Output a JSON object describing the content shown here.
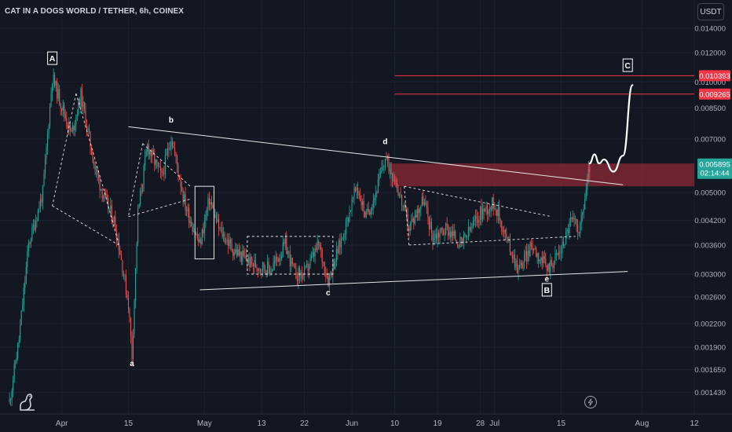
{
  "header": {
    "title": "CAT IN A DOGS WORLD / TETHER, 6h, COINEX",
    "currency": "USDT"
  },
  "icons": {
    "logo": "tradingview-dino-icon",
    "replay": "lightning-bolt-icon"
  },
  "colors": {
    "background": "#131722",
    "up": "#26a69a",
    "down": "#ef5350",
    "target_line": "#f23645",
    "resistance_zone": "#8c2a35",
    "current_price_tag": "#26a69a",
    "annotation": "#ffffff"
  },
  "chart_data": {
    "type": "candlestick",
    "title": "CAT IN A DOGS WORLD / TETHER, 6h, COINEX",
    "xlabel": "",
    "ylabel": "",
    "y_scale": "log",
    "ylim": [
      0.00125,
      0.0167
    ],
    "xlim": [
      "2024-03-19",
      "2024-08-12"
    ],
    "x_ticks": [
      {
        "date": "2024-04-01",
        "label": "Apr"
      },
      {
        "date": "2024-04-15",
        "label": "15"
      },
      {
        "date": "2024-05-01",
        "label": "May"
      },
      {
        "date": "2024-05-13",
        "label": "13"
      },
      {
        "date": "2024-05-22",
        "label": "22"
      },
      {
        "date": "2024-06-01",
        "label": "Jun"
      },
      {
        "date": "2024-06-10",
        "label": "10"
      },
      {
        "date": "2024-06-19",
        "label": "19"
      },
      {
        "date": "2024-06-28",
        "label": "28"
      },
      {
        "date": "2024-07-01",
        "label": "Jul"
      },
      {
        "date": "2024-07-15",
        "label": "15"
      },
      {
        "date": "2024-08-01",
        "label": "Aug"
      },
      {
        "date": "2024-08-12",
        "label": "12"
      }
    ],
    "y_ticks": [
      "0.014000",
      "0.012000",
      "0.010000",
      "0.008500",
      "0.007000",
      "0.005000",
      "0.004200",
      "0.003600",
      "0.003000",
      "0.002600",
      "0.002200",
      "0.001900",
      "0.001650",
      "0.001430"
    ],
    "price_path": [
      {
        "date": "2024-03-21",
        "price": 0.00135
      },
      {
        "date": "2024-03-23",
        "price": 0.002
      },
      {
        "date": "2024-03-25",
        "price": 0.0036
      },
      {
        "date": "2024-03-28",
        "price": 0.005
      },
      {
        "date": "2024-03-30",
        "price": 0.0103
      },
      {
        "date": "2024-04-03",
        "price": 0.0072
      },
      {
        "date": "2024-04-05",
        "price": 0.0092
      },
      {
        "date": "2024-04-08",
        "price": 0.0058
      },
      {
        "date": "2024-04-10",
        "price": 0.0048
      },
      {
        "date": "2024-04-12",
        "price": 0.0042
      },
      {
        "date": "2024-04-13",
        "price": 0.0036
      },
      {
        "date": "2024-04-15",
        "price": 0.0025
      },
      {
        "date": "2024-04-15T18:00",
        "price": 0.0018
      },
      {
        "date": "2024-04-17",
        "price": 0.0044
      },
      {
        "date": "2024-04-19",
        "price": 0.0067
      },
      {
        "date": "2024-04-22",
        "price": 0.0055
      },
      {
        "date": "2024-04-24",
        "price": 0.0071
      },
      {
        "date": "2024-04-27",
        "price": 0.0046
      },
      {
        "date": "2024-04-30",
        "price": 0.0036
      },
      {
        "date": "2024-05-02",
        "price": 0.0048
      },
      {
        "date": "2024-05-04",
        "price": 0.004
      },
      {
        "date": "2024-05-07",
        "price": 0.0035
      },
      {
        "date": "2024-05-11",
        "price": 0.0032
      },
      {
        "date": "2024-05-15",
        "price": 0.0031
      },
      {
        "date": "2024-05-18",
        "price": 0.0036
      },
      {
        "date": "2024-05-20",
        "price": 0.003
      },
      {
        "date": "2024-05-22",
        "price": 0.003
      },
      {
        "date": "2024-05-25",
        "price": 0.0036
      },
      {
        "date": "2024-05-27",
        "price": 0.0029
      },
      {
        "date": "2024-05-30",
        "price": 0.0038
      },
      {
        "date": "2024-06-02",
        "price": 0.0052
      },
      {
        "date": "2024-06-04",
        "price": 0.0043
      },
      {
        "date": "2024-06-06",
        "price": 0.005
      },
      {
        "date": "2024-06-08",
        "price": 0.0062
      },
      {
        "date": "2024-06-10",
        "price": 0.0055
      },
      {
        "date": "2024-06-13",
        "price": 0.004
      },
      {
        "date": "2024-06-16",
        "price": 0.0048
      },
      {
        "date": "2024-06-18",
        "price": 0.0038
      },
      {
        "date": "2024-06-21",
        "price": 0.004
      },
      {
        "date": "2024-06-24",
        "price": 0.0036
      },
      {
        "date": "2024-06-28",
        "price": 0.0044
      },
      {
        "date": "2024-07-01",
        "price": 0.0047
      },
      {
        "date": "2024-07-03",
        "price": 0.0039
      },
      {
        "date": "2024-07-06",
        "price": 0.0031
      },
      {
        "date": "2024-07-09",
        "price": 0.0036
      },
      {
        "date": "2024-07-12",
        "price": 0.0031
      },
      {
        "date": "2024-07-15",
        "price": 0.0035
      },
      {
        "date": "2024-07-17",
        "price": 0.0042
      },
      {
        "date": "2024-07-19",
        "price": 0.004
      },
      {
        "date": "2024-07-21",
        "price": 0.0059
      }
    ],
    "current_price": {
      "value": "0.005895",
      "countdown": "02:14:44"
    },
    "target_levels": [
      {
        "label": "0.010393",
        "price": 0.010393,
        "from": "2024-06-10",
        "to": "2024-08-12"
      },
      {
        "label": "0.009265",
        "price": 0.009265,
        "from": "2024-06-10",
        "to": "2024-08-12"
      }
    ],
    "resistance_zone": {
      "from": "2024-06-09",
      "to": "2024-08-12",
      "top": 0.006,
      "bottom": 0.0052
    },
    "trendlines": [
      {
        "style": "solid",
        "from": {
          "date": "2024-04-15",
          "price": 0.00755
        },
        "to": {
          "date": "2024-07-28",
          "price": 0.00525
        }
      },
      {
        "style": "solid",
        "from": {
          "date": "2024-04-30",
          "price": 0.00272
        },
        "to": {
          "date": "2024-07-29",
          "price": 0.00305
        }
      },
      {
        "style": "dashed",
        "from": {
          "date": "2024-04-04",
          "price": 0.0093
        },
        "to": {
          "date": "2024-04-10",
          "price": 0.005
        }
      },
      {
        "style": "dashed",
        "from": {
          "date": "2024-04-04",
          "price": 0.0093
        },
        "to": {
          "date": "2024-03-30",
          "price": 0.0046
        }
      },
      {
        "style": "dashed",
        "from": {
          "date": "2024-03-30",
          "price": 0.0046
        },
        "to": {
          "date": "2024-04-13",
          "price": 0.0036
        }
      },
      {
        "style": "dashed",
        "from": {
          "date": "2024-04-10",
          "price": 0.005
        },
        "to": {
          "date": "2024-04-13",
          "price": 0.0036
        }
      },
      {
        "style": "dashed",
        "from": {
          "date": "2024-04-18",
          "price": 0.0068
        },
        "to": {
          "date": "2024-04-28",
          "price": 0.0052
        }
      },
      {
        "style": "dashed",
        "from": {
          "date": "2024-04-18",
          "price": 0.0068
        },
        "to": {
          "date": "2024-04-15",
          "price": 0.0043
        }
      },
      {
        "style": "dashed",
        "from": {
          "date": "2024-04-15",
          "price": 0.0043
        },
        "to": {
          "date": "2024-04-28",
          "price": 0.0048
        }
      },
      {
        "style": "dashed",
        "from": {
          "date": "2024-06-12",
          "price": 0.0052
        },
        "to": {
          "date": "2024-07-13",
          "price": 0.0043
        }
      },
      {
        "style": "dashed",
        "from": {
          "date": "2024-06-12",
          "price": 0.0052
        },
        "to": {
          "date": "2024-06-13",
          "price": 0.0036
        }
      },
      {
        "style": "dashed",
        "from": {
          "date": "2024-06-13",
          "price": 0.0036
        },
        "to": {
          "date": "2024-07-18",
          "price": 0.0038
        }
      }
    ],
    "boxes": [
      {
        "style": "solid",
        "from": "2024-04-29",
        "to": "2024-05-03",
        "top": 0.0052,
        "bottom": 0.0033
      },
      {
        "style": "dashed",
        "from": "2024-05-10",
        "to": "2024-05-28",
        "top": 0.0038,
        "bottom": 0.003
      }
    ],
    "wave_labels": [
      {
        "text": "A",
        "boxed": true,
        "date": "2024-03-30",
        "price": 0.0116
      },
      {
        "text": "a",
        "boxed": false,
        "date": "2024-04-15T18:00",
        "price": 0.00172
      },
      {
        "text": "b",
        "boxed": false,
        "date": "2024-04-24",
        "price": 0.0079
      },
      {
        "text": "c",
        "boxed": false,
        "date": "2024-05-27",
        "price": 0.00268
      },
      {
        "text": "d",
        "boxed": false,
        "date": "2024-06-08",
        "price": 0.0069
      },
      {
        "text": "e",
        "boxed": false,
        "date": "2024-07-12",
        "price": 0.00292
      },
      {
        "text": "B",
        "boxed": true,
        "date": "2024-07-12",
        "price": 0.00272
      },
      {
        "text": "C",
        "boxed": true,
        "date": "2024-07-29",
        "price": 0.0111
      }
    ],
    "projection_path": [
      {
        "date": "2024-07-21",
        "price": 0.006
      },
      {
        "date": "2024-07-22",
        "price": 0.00635
      },
      {
        "date": "2024-07-23",
        "price": 0.006
      },
      {
        "date": "2024-07-24",
        "price": 0.00615
      },
      {
        "date": "2024-07-26",
        "price": 0.0057
      },
      {
        "date": "2024-07-28",
        "price": 0.0063
      },
      {
        "date": "2024-07-30",
        "price": 0.0098
      }
    ]
  }
}
